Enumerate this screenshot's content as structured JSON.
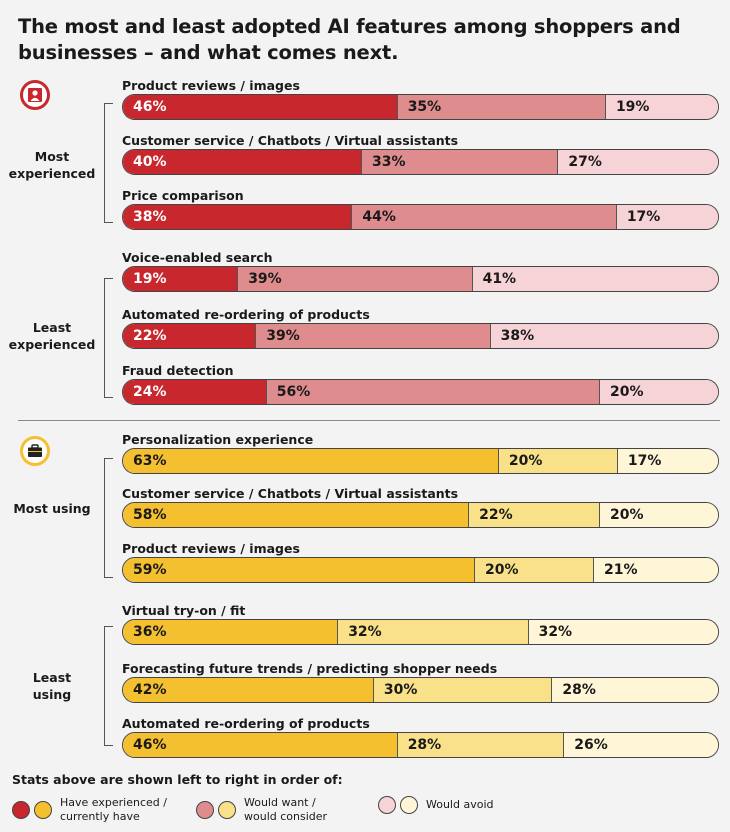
{
  "title": "The most and least adopted AI features among shoppers and businesses – and what comes next.",
  "colors": {
    "shopper": [
      "#c8272d",
      "#de8c8e",
      "#f5d3d6"
    ],
    "business": [
      "#f5c030",
      "#f9e18a",
      "#fff6d8"
    ]
  },
  "sections": [
    {
      "icon": "person-icon",
      "groups": [
        {
          "label": "Most experienced"
        },
        {
          "label": "Least experienced"
        }
      ]
    },
    {
      "icon": "briefcase-icon",
      "groups": [
        {
          "label": "Most using"
        },
        {
          "label": "Least using"
        }
      ]
    }
  ],
  "legend": {
    "title": "Stats above are shown left to right in order of:",
    "items": [
      {
        "label": "Have experienced /\ncurrently have"
      },
      {
        "label": "Would want /\nwould consider"
      },
      {
        "label": "Would avoid"
      }
    ]
  },
  "chart_data": {
    "type": "bar",
    "stacked": true,
    "orientation": "horizontal",
    "series_names": [
      "Have experienced / currently have",
      "Would want / would consider",
      "Would avoid"
    ],
    "rows": [
      {
        "section": 0,
        "group": "Most experienced",
        "label": "Product reviews / images",
        "values": [
          46,
          35,
          19
        ]
      },
      {
        "section": 0,
        "group": "Most experienced",
        "label": "Customer service / Chatbots / Virtual assistants",
        "values": [
          40,
          33,
          27
        ]
      },
      {
        "section": 0,
        "group": "Most experienced",
        "label": "Price comparison",
        "values": [
          38,
          44,
          17
        ]
      },
      {
        "section": 0,
        "group": "Least experienced",
        "label": "Voice-enabled search",
        "values": [
          19,
          39,
          41
        ]
      },
      {
        "section": 0,
        "group": "Least experienced",
        "label": "Automated re-ordering of products",
        "values": [
          22,
          39,
          38
        ]
      },
      {
        "section": 0,
        "group": "Least experienced",
        "label": "Fraud detection",
        "values": [
          24,
          56,
          20
        ]
      },
      {
        "section": 1,
        "group": "Most using",
        "label": "Personalization experience",
        "values": [
          63,
          20,
          17
        ]
      },
      {
        "section": 1,
        "group": "Most using",
        "label": "Customer service / Chatbots / Virtual assistants",
        "values": [
          58,
          22,
          20
        ]
      },
      {
        "section": 1,
        "group": "Most using",
        "label": "Product reviews / images",
        "values": [
          59,
          20,
          21
        ]
      },
      {
        "section": 1,
        "group": "Least using",
        "label": "Virtual try-on / fit",
        "values": [
          36,
          32,
          32
        ]
      },
      {
        "section": 1,
        "group": "Least using",
        "label": "Forecasting future trends / predicting shopper needs",
        "values": [
          42,
          30,
          28
        ]
      },
      {
        "section": 1,
        "group": "Least using",
        "label": "Automated re-ordering of products",
        "values": [
          46,
          28,
          26
        ]
      }
    ]
  }
}
